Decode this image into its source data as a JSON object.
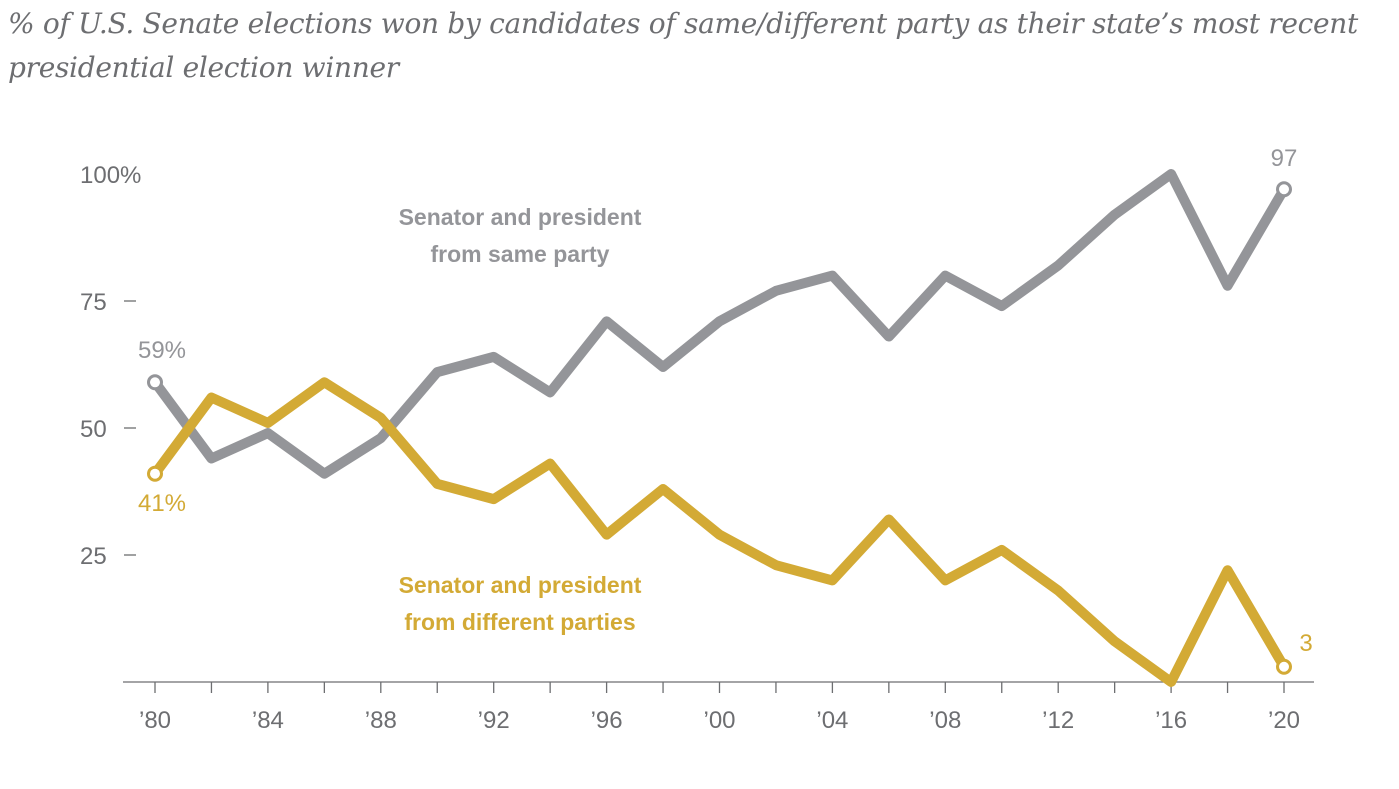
{
  "chart_data": {
    "type": "line",
    "title": "% of U.S. Senate elections won by candidates of same/different party as their state’s most recent presidential election winner",
    "xlabel": "",
    "ylabel": "",
    "x": [
      1980,
      1982,
      1984,
      1986,
      1988,
      1990,
      1992,
      1994,
      1996,
      1998,
      2000,
      2002,
      2004,
      2006,
      2008,
      2010,
      2012,
      2014,
      2016,
      2018,
      2020
    ],
    "xticks": [
      1980,
      1984,
      1988,
      1992,
      1996,
      2000,
      2004,
      2008,
      2012,
      2016,
      2020
    ],
    "xtick_labels": [
      "’80",
      "’84",
      "’88",
      "’92",
      "’96",
      "’00",
      "’04",
      "’08",
      "’12",
      "’16",
      "’20"
    ],
    "yticks": [
      25,
      50,
      75,
      100
    ],
    "ytick_labels": [
      "25",
      "50",
      "75",
      "100%"
    ],
    "ylim": [
      0,
      100
    ],
    "xlim": [
      1977.5,
      2021
    ],
    "grid": false,
    "series": [
      {
        "name": "Senator and president from same party",
        "label_lines": [
          "Senator and president",
          "from same party"
        ],
        "color": "#949599",
        "values": [
          59,
          44,
          49,
          41,
          48,
          61,
          64,
          57,
          71,
          62,
          71,
          77,
          80,
          68,
          80,
          74,
          82,
          92,
          100,
          78,
          97
        ],
        "start_label": "59%",
        "end_label": "97"
      },
      {
        "name": "Senator and president from different parties",
        "label_lines": [
          "Senator and president",
          "from different parties"
        ],
        "color": "#d3aa35",
        "values": [
          41,
          56,
          51,
          59,
          52,
          39,
          36,
          43,
          29,
          38,
          29,
          23,
          20,
          32,
          20,
          26,
          18,
          8,
          0,
          22,
          3
        ],
        "start_label": "41%",
        "end_label": "3"
      }
    ]
  }
}
